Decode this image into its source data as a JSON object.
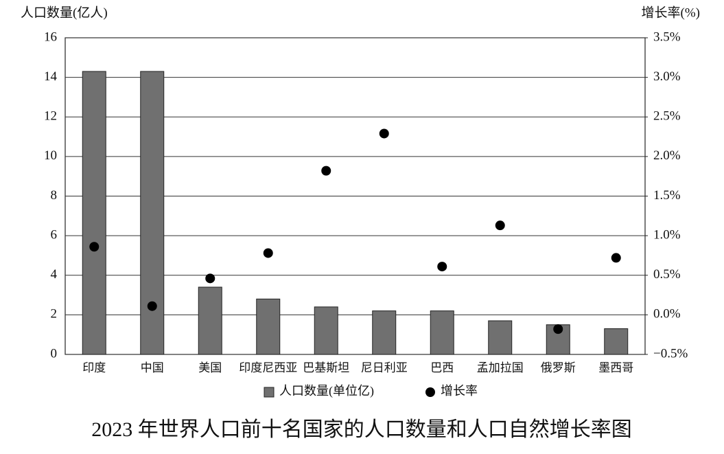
{
  "chart_data": {
    "type": "bar",
    "title": "2023 年世界人口前十名国家的人口数量和人口自然增长率图",
    "y_label": "人口数量(亿人)",
    "y2_label": "增长率(%)",
    "categories": [
      "印度",
      "中国",
      "美国",
      "印度尼西亚",
      "巴基斯坦",
      "尼日利亚",
      "巴西",
      "孟加拉国",
      "俄罗斯",
      "墨西哥"
    ],
    "series": [
      {
        "name": "人口数量(单位亿)",
        "type": "bar",
        "color": "#707070",
        "values": [
          14.3,
          14.3,
          3.4,
          2.8,
          2.4,
          2.2,
          2.2,
          1.7,
          1.5,
          1.3
        ]
      },
      {
        "name": "增长率",
        "type": "scatter",
        "axis": "y2",
        "color": "#000000",
        "values": [
          0.86,
          0.11,
          0.46,
          0.78,
          1.82,
          2.29,
          0.61,
          1.13,
          -0.18,
          0.72
        ]
      }
    ],
    "ylim": [
      0,
      16
    ],
    "yticks": [
      0,
      2,
      4,
      6,
      8,
      10,
      12,
      14,
      16
    ],
    "y2lim": [
      -0.5,
      3.5
    ],
    "y2ticks": [
      {
        "value": -0.5,
        "label": "−0.5%"
      },
      {
        "value": 0,
        "label": "0.0%"
      },
      {
        "value": 0.5,
        "label": "0.5%"
      },
      {
        "value": 1,
        "label": "1.0%"
      },
      {
        "value": 1.5,
        "label": "1.5%"
      },
      {
        "value": 2,
        "label": "2.0%"
      },
      {
        "value": 2.5,
        "label": "2.5%"
      },
      {
        "value": 3,
        "label": "3.0%"
      },
      {
        "value": 3.5,
        "label": "3.5%"
      }
    ],
    "grid": true,
    "legend": "bottom"
  }
}
